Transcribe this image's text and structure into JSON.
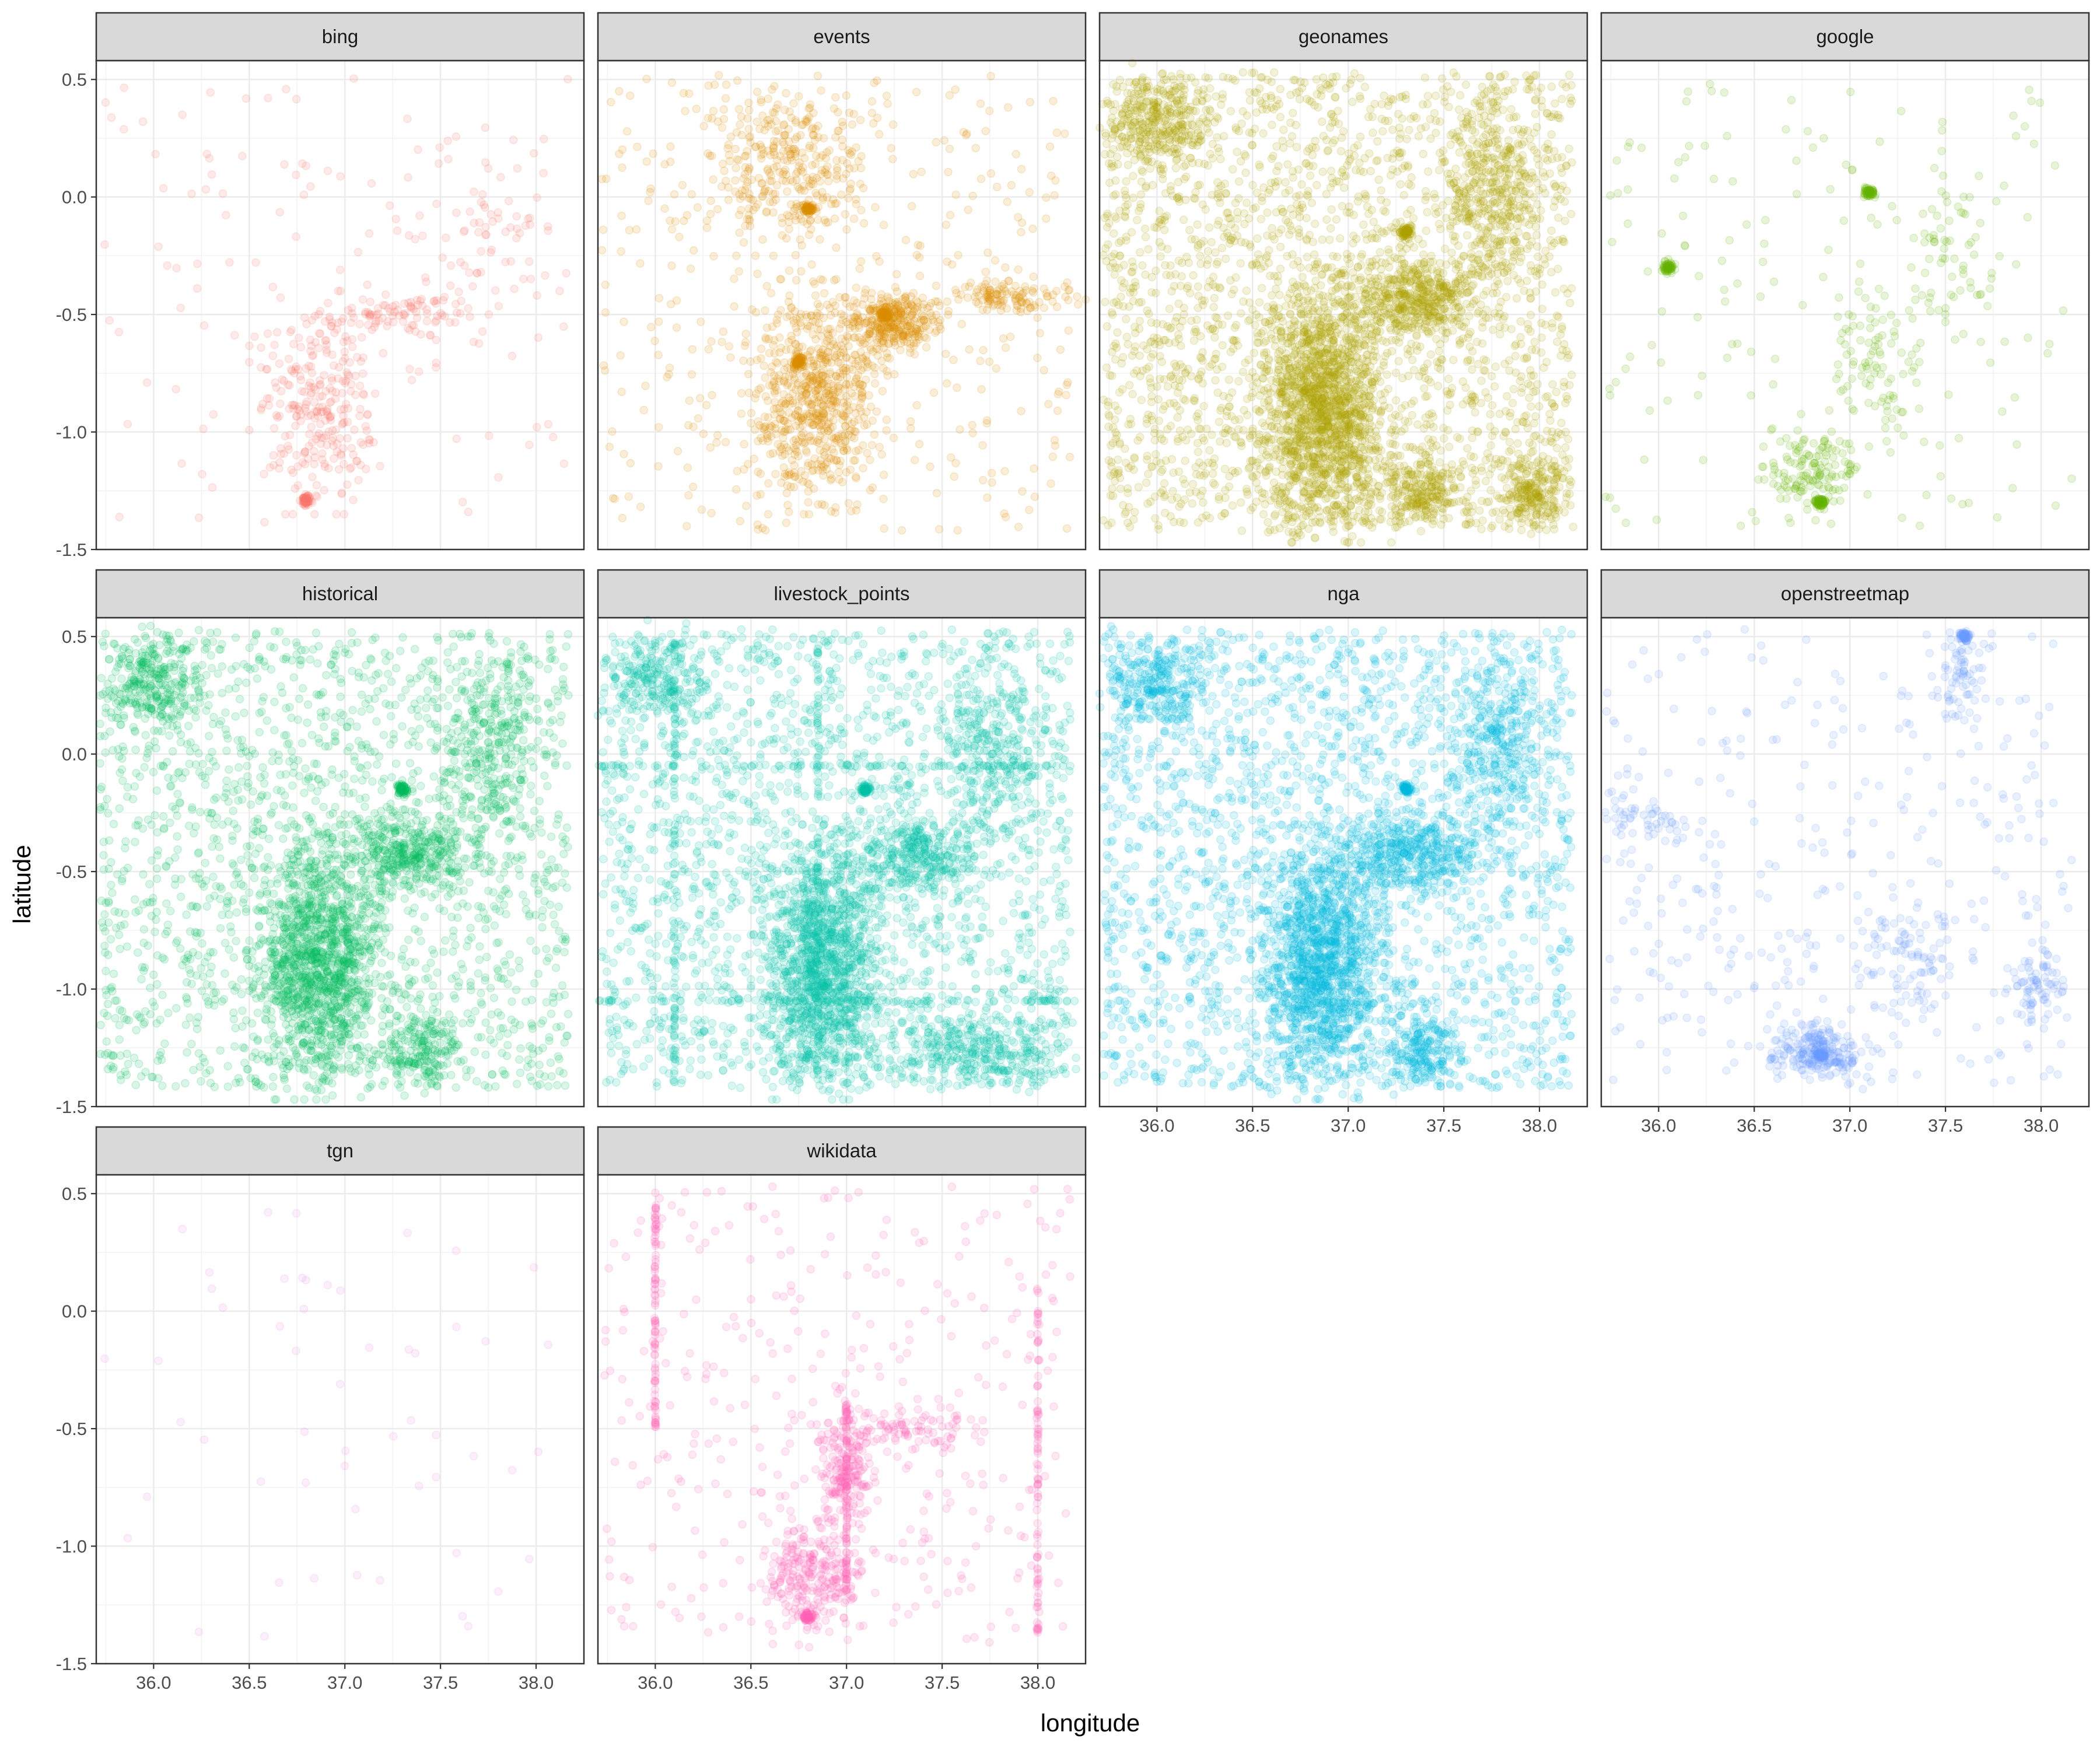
{
  "chart_data": {
    "type": "scatter",
    "facet_layout": "wrap",
    "xlabel": "longitude",
    "ylabel": "latitude",
    "xlim": [
      35.7,
      38.25
    ],
    "ylim": [
      -1.5,
      0.58
    ],
    "x_ticks": [
      36.0,
      36.5,
      37.0,
      37.5,
      38.0
    ],
    "x_tick_labels": [
      "36.0",
      "36.5",
      "37.0",
      "37.5",
      "38.0"
    ],
    "y_ticks": [
      -1.5,
      -1.0,
      -0.5,
      0.0,
      0.5
    ],
    "y_tick_labels": [
      "-1.5",
      "-1.0",
      "-0.5",
      "0.0",
      "0.5"
    ],
    "grid": true,
    "legend": "none",
    "point_alpha": 0.15,
    "panels": [
      {
        "name": "bing",
        "color": "#F8766D",
        "density": "sparse",
        "clusters": [
          {
            "x": [
              36.55,
              37.15
            ],
            "y": [
              -1.3,
              -0.45
            ],
            "n": 260
          },
          {
            "x": [
              36.85,
              37.7
            ],
            "y": [
              -0.6,
              -0.4
            ],
            "n": 90
          },
          {
            "x": [
              37.45,
              38.05
            ],
            "y": [
              -0.5,
              0.25
            ],
            "n": 60
          }
        ],
        "hotspots": [
          {
            "x": 36.8,
            "y": -1.29
          }
        ],
        "background_n": 140
      },
      {
        "name": "events",
        "color": "#DB8E00",
        "density": "medium",
        "clusters": [
          {
            "x": [
              36.3,
              37.1
            ],
            "y": [
              -0.2,
              0.45
            ],
            "n": 300
          },
          {
            "x": [
              36.5,
              37.2
            ],
            "y": [
              -1.3,
              -0.4
            ],
            "n": 650
          },
          {
            "x": [
              37.0,
              37.5
            ],
            "y": [
              -0.65,
              -0.4
            ],
            "n": 320
          },
          {
            "x": [
              37.4,
              38.2
            ],
            "y": [
              -0.5,
              -0.35
            ],
            "n": 120
          }
        ],
        "hotspots": [
          {
            "x": 36.75,
            "y": -0.7
          },
          {
            "x": 37.2,
            "y": -0.5
          },
          {
            "x": 36.8,
            "y": -0.05
          }
        ],
        "background_n": 420
      },
      {
        "name": "geonames",
        "color": "#AEA200",
        "density": "dense",
        "clusters": [
          {
            "x": [
              36.55,
              37.2
            ],
            "y": [
              -1.42,
              -0.35
            ],
            "n": 1400
          },
          {
            "x": [
              37.0,
              37.7
            ],
            "y": [
              -0.6,
              -0.25
            ],
            "n": 450
          },
          {
            "x": [
              37.5,
              38.05
            ],
            "y": [
              -0.4,
              0.45
            ],
            "n": 350
          },
          {
            "x": [
              35.7,
              36.3
            ],
            "y": [
              0.1,
              0.52
            ],
            "n": 280
          },
          {
            "x": [
              37.2,
              37.6
            ],
            "y": [
              -1.42,
              -1.1
            ],
            "n": 200
          },
          {
            "x": [
              37.8,
              38.15
            ],
            "y": [
              -1.42,
              -1.1
            ],
            "n": 200
          }
        ],
        "hotspots": [
          {
            "x": 37.3,
            "y": -0.15
          }
        ],
        "background_n": 2400
      },
      {
        "name": "google",
        "color": "#64B200",
        "density": "sparse",
        "clusters": [
          {
            "x": [
              36.55,
              37.05
            ],
            "y": [
              -1.35,
              -1.0
            ],
            "n": 140
          },
          {
            "x": [
              36.9,
              37.4
            ],
            "y": [
              -1.0,
              -0.4
            ],
            "n": 90
          },
          {
            "x": [
              37.2,
              37.8
            ],
            "y": [
              -0.6,
              0.1
            ],
            "n": 60
          }
        ],
        "hotspots": [
          {
            "x": 36.85,
            "y": -1.3
          },
          {
            "x": 36.05,
            "y": -0.3
          },
          {
            "x": 37.1,
            "y": 0.02
          }
        ],
        "background_n": 170
      },
      {
        "name": "historical",
        "color": "#00BD5C",
        "density": "dense",
        "clusters": [
          {
            "x": [
              36.55,
              37.2
            ],
            "y": [
              -1.42,
              -0.35
            ],
            "n": 1200
          },
          {
            "x": [
              37.0,
              37.7
            ],
            "y": [
              -0.6,
              -0.25
            ],
            "n": 380
          },
          {
            "x": [
              37.5,
              38.05
            ],
            "y": [
              -0.4,
              0.45
            ],
            "n": 280
          },
          {
            "x": [
              35.7,
              36.3
            ],
            "y": [
              0.1,
              0.52
            ],
            "n": 260
          },
          {
            "x": [
              37.2,
              37.6
            ],
            "y": [
              -1.42,
              -1.1
            ],
            "n": 180
          }
        ],
        "hotspots": [
          {
            "x": 37.3,
            "y": -0.15
          }
        ],
        "background_n": 1800
      },
      {
        "name": "livestock_points",
        "color": "#00C1A7",
        "density": "dense",
        "clusters": [
          {
            "x": [
              36.55,
              37.2
            ],
            "y": [
              -1.42,
              -0.35
            ],
            "n": 1200
          },
          {
            "x": [
              37.0,
              37.7
            ],
            "y": [
              -0.6,
              -0.25
            ],
            "n": 350
          },
          {
            "x": [
              37.5,
              38.05
            ],
            "y": [
              -0.4,
              0.45
            ],
            "n": 260
          },
          {
            "x": [
              35.7,
              36.3
            ],
            "y": [
              0.1,
              0.52
            ],
            "n": 220
          },
          {
            "x": [
              37.2,
              38.15
            ],
            "y": [
              -1.42,
              -1.1
            ],
            "n": 320
          }
        ],
        "lines": [
          {
            "x": [
              35.7,
              38.2
            ],
            "y": [
              -0.05,
              -0.05
            ]
          },
          {
            "x": [
              35.7,
              38.2
            ],
            "y": [
              -1.05,
              -1.05
            ]
          },
          {
            "x": [
              36.85,
              36.85
            ],
            "y": [
              -1.4,
              0.5
            ]
          },
          {
            "x": [
              36.1,
              36.1
            ],
            "y": [
              -1.4,
              0.5
            ]
          }
        ],
        "hotspots": [
          {
            "x": 37.1,
            "y": -0.15
          }
        ],
        "background_n": 2000
      },
      {
        "name": "nga",
        "color": "#00BAE0",
        "density": "dense",
        "clusters": [
          {
            "x": [
              36.55,
              37.2
            ],
            "y": [
              -1.42,
              -0.35
            ],
            "n": 1300
          },
          {
            "x": [
              37.0,
              37.7
            ],
            "y": [
              -0.6,
              -0.25
            ],
            "n": 420
          },
          {
            "x": [
              37.5,
              38.05
            ],
            "y": [
              -0.4,
              0.45
            ],
            "n": 320
          },
          {
            "x": [
              35.7,
              36.3
            ],
            "y": [
              0.1,
              0.52
            ],
            "n": 260
          },
          {
            "x": [
              37.2,
              37.6
            ],
            "y": [
              -1.42,
              -1.1
            ],
            "n": 200
          }
        ],
        "hotspots": [
          {
            "x": 37.3,
            "y": -0.15
          }
        ],
        "background_n": 2200
      },
      {
        "name": "openstreetmap",
        "color": "#6C9DFF",
        "density": "sparse",
        "clusters": [
          {
            "x": [
              36.6,
              37.05
            ],
            "y": [
              -1.38,
              -1.15
            ],
            "n": 220
          },
          {
            "x": [
              37.0,
              37.6
            ],
            "y": [
              -1.1,
              -0.6
            ],
            "n": 90
          },
          {
            "x": [
              37.45,
              37.7
            ],
            "y": [
              0.1,
              0.55
            ],
            "n": 60
          },
          {
            "x": [
              37.85,
              38.1
            ],
            "y": [
              -1.15,
              -0.8
            ],
            "n": 70
          },
          {
            "x": [
              35.7,
              36.2
            ],
            "y": [
              -0.4,
              -0.15
            ],
            "n": 50
          }
        ],
        "hotspots": [
          {
            "x": 36.85,
            "y": -1.28
          },
          {
            "x": 37.6,
            "y": 0.5
          }
        ],
        "background_n": 380
      },
      {
        "name": "tgn",
        "color": "#EE8AE5",
        "density": "very-sparse",
        "clusters": [],
        "hotspots": [],
        "background_n": 55
      },
      {
        "name": "wikidata",
        "color": "#FF63B6",
        "density": "sparse",
        "clusters": [
          {
            "x": [
              36.55,
              37.1
            ],
            "y": [
              -1.38,
              -0.9
            ],
            "n": 260
          },
          {
            "x": [
              36.85,
              37.15
            ],
            "y": [
              -0.95,
              -0.4
            ],
            "n": 200
          },
          {
            "x": [
              37.0,
              37.7
            ],
            "y": [
              -0.6,
              -0.4
            ],
            "n": 90
          }
        ],
        "lines": [
          {
            "x": [
              37.0,
              37.0
            ],
            "y": [
              -1.2,
              -0.4
            ]
          },
          {
            "x": [
              38.0,
              38.0
            ],
            "y": [
              -1.4,
              0.1
            ]
          },
          {
            "x": [
              36.0,
              36.0
            ],
            "y": [
              -0.5,
              0.5
            ]
          }
        ],
        "hotspots": [
          {
            "x": 36.8,
            "y": -1.3
          }
        ],
        "background_n": 360
      }
    ]
  }
}
